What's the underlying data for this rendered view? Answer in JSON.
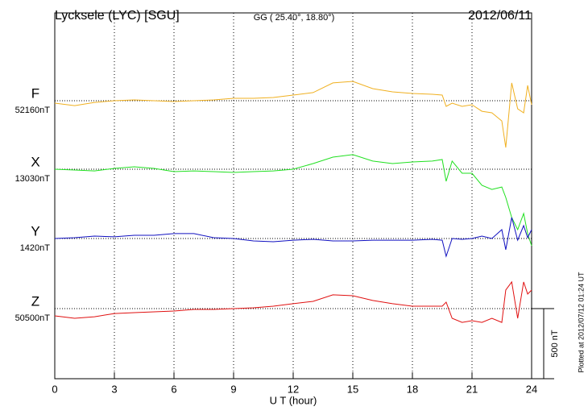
{
  "chart_data": {
    "type": "line",
    "title": "Lycksele (LYC)  [SGU]",
    "subtitle": "GG ( 25.40°,  18.80°)",
    "date": "2012/06/11",
    "xlabel": "U T (hour)",
    "footnote": "Plotted at 2012/07/12 01:24 UT",
    "xlim": [
      0,
      24
    ],
    "xticks": [
      0,
      3,
      6,
      9,
      12,
      15,
      18,
      21,
      24
    ],
    "grid": true,
    "scale_bar": {
      "value": 500,
      "label": "500 nT"
    },
    "x": [
      0,
      1,
      2,
      3,
      4,
      5,
      6,
      7,
      8,
      9,
      10,
      11,
      12,
      13,
      14,
      15,
      16,
      17,
      18,
      19,
      19.5,
      19.7,
      20,
      20.5,
      21,
      21.5,
      22,
      22.5,
      22.7,
      23,
      23.3,
      23.6,
      23.8,
      24
    ],
    "series": [
      {
        "name": "F",
        "color": "#f0b020",
        "baseline": {
          "value": 52160,
          "label": "52160nT"
        },
        "values": [
          52143,
          52125,
          52148,
          52160,
          52166,
          52160,
          52154,
          52160,
          52166,
          52177,
          52177,
          52183,
          52200,
          52218,
          52287,
          52298,
          52246,
          52223,
          52212,
          52206,
          52200,
          52120,
          52143,
          52120,
          52131,
          52085,
          52074,
          52016,
          51826,
          52287,
          52102,
          52074,
          52269,
          52131
        ]
      },
      {
        "name": "X",
        "color": "#20e020",
        "baseline": {
          "value": 13030,
          "label": "13030nT"
        },
        "values": [
          13030,
          13024,
          13018,
          13036,
          13047,
          13036,
          13013,
          13018,
          13013,
          13007,
          13013,
          13018,
          13030,
          13070,
          13116,
          13134,
          13088,
          13070,
          13082,
          13088,
          13099,
          12944,
          13088,
          13001,
          13001,
          12915,
          12886,
          12903,
          12829,
          12685,
          12599,
          12714,
          12570,
          12484
        ]
      },
      {
        "name": "Y",
        "color": "#1010c0",
        "baseline": {
          "value": 1420,
          "label": "1420nT"
        },
        "values": [
          1420,
          1426,
          1437,
          1432,
          1443,
          1443,
          1455,
          1455,
          1426,
          1420,
          1403,
          1397,
          1408,
          1414,
          1403,
          1403,
          1408,
          1408,
          1408,
          1414,
          1408,
          1293,
          1420,
          1414,
          1420,
          1437,
          1420,
          1483,
          1340,
          1570,
          1408,
          1512,
          1426,
          1483
        ]
      },
      {
        "name": "Z",
        "color": "#e01010",
        "baseline": {
          "value": 50500,
          "label": "50500nT"
        },
        "values": [
          50448,
          50431,
          50442,
          50465,
          50471,
          50477,
          50483,
          50494,
          50494,
          50500,
          50506,
          50517,
          50535,
          50552,
          50598,
          50592,
          50558,
          50535,
          50517,
          50517,
          50517,
          50546,
          50431,
          50402,
          50414,
          50402,
          50431,
          50402,
          50632,
          50690,
          50431,
          50690,
          50604,
          50632
        ]
      }
    ]
  }
}
